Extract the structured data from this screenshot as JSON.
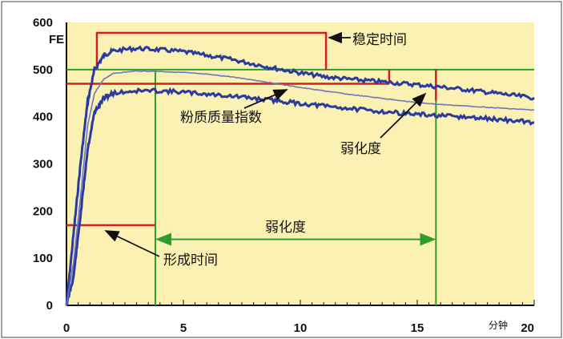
{
  "chart_data": {
    "type": "line",
    "xlim": [
      0,
      20
    ],
    "ylim": [
      0,
      600
    ],
    "x_ticks": [
      "0",
      "5",
      "10",
      "15",
      "20"
    ],
    "y_ticks": [
      "0",
      "100",
      "200",
      "300",
      "400",
      "500",
      "600"
    ],
    "ylabel": "FE",
    "xlabel": "分钟",
    "grid": false,
    "background_color": "#fbf1b3",
    "colors": {
      "band": "#2a3a9e",
      "center": "#6f75c4",
      "red": "#d41f1f",
      "green": "#2d9d2a"
    },
    "series": [
      {
        "values_upper": [
          [
            0,
            0
          ],
          [
            0.3,
            150
          ],
          [
            0.6,
            300
          ],
          [
            0.9,
            430
          ],
          [
            1.2,
            500
          ],
          [
            1.6,
            530
          ],
          [
            2,
            540
          ],
          [
            3,
            545
          ],
          [
            4,
            542
          ],
          [
            5,
            538
          ],
          [
            6,
            530
          ],
          [
            7,
            522
          ],
          [
            8,
            512
          ],
          [
            9,
            502
          ],
          [
            10,
            493
          ],
          [
            11,
            485
          ],
          [
            12,
            480
          ],
          [
            13,
            476
          ],
          [
            14,
            472
          ],
          [
            15,
            468
          ],
          [
            16,
            463
          ],
          [
            17,
            458
          ],
          [
            18,
            452
          ],
          [
            19,
            446
          ],
          [
            20,
            440
          ]
        ]
      },
      {
        "values_center": [
          [
            0,
            0
          ],
          [
            0.3,
            90
          ],
          [
            0.6,
            230
          ],
          [
            0.9,
            380
          ],
          [
            1.2,
            450
          ],
          [
            1.6,
            480
          ],
          [
            2,
            492
          ],
          [
            3,
            497
          ],
          [
            4,
            496
          ],
          [
            5,
            494
          ],
          [
            6,
            490
          ],
          [
            7,
            485
          ],
          [
            8,
            478
          ],
          [
            9,
            470
          ],
          [
            10,
            462
          ],
          [
            11,
            455
          ],
          [
            12,
            448
          ],
          [
            13,
            442
          ],
          [
            14,
            436
          ],
          [
            15,
            430
          ],
          [
            16,
            426
          ],
          [
            17,
            423
          ],
          [
            18,
            420
          ],
          [
            19,
            417
          ],
          [
            20,
            414
          ]
        ]
      },
      {
        "values_lower": [
          [
            0,
            0
          ],
          [
            0.3,
            60
          ],
          [
            0.6,
            190
          ],
          [
            0.9,
            330
          ],
          [
            1.2,
            410
          ],
          [
            1.6,
            440
          ],
          [
            2,
            450
          ],
          [
            3,
            455
          ],
          [
            4,
            455
          ],
          [
            5,
            452
          ],
          [
            6,
            448
          ],
          [
            7,
            444
          ],
          [
            8,
            439
          ],
          [
            9,
            434
          ],
          [
            10,
            428
          ],
          [
            11,
            423
          ],
          [
            12,
            418
          ],
          [
            13,
            413
          ],
          [
            14,
            409
          ],
          [
            15,
            405
          ],
          [
            16,
            402
          ],
          [
            17,
            399
          ],
          [
            18,
            396
          ],
          [
            19,
            392
          ],
          [
            20,
            388
          ]
        ]
      }
    ],
    "annotations": {
      "stability": "稳定时间",
      "quality_index": "粉质质量指数",
      "weakening_top": "弱化度",
      "weakening_mid": "弱化度",
      "formation": "形成时间"
    },
    "markers": {
      "green_line_y": 500,
      "red_line_y": 470,
      "stability_box": {
        "x_start": 1.3,
        "x_end": 11.1,
        "y_top": 578,
        "y_bottom": 500
      },
      "quality_drop_x": 13.8,
      "weakening_end_x": 15.8,
      "formation_x": 3.8,
      "formation_y": 170,
      "weakening_arrow_y": 140
    }
  }
}
